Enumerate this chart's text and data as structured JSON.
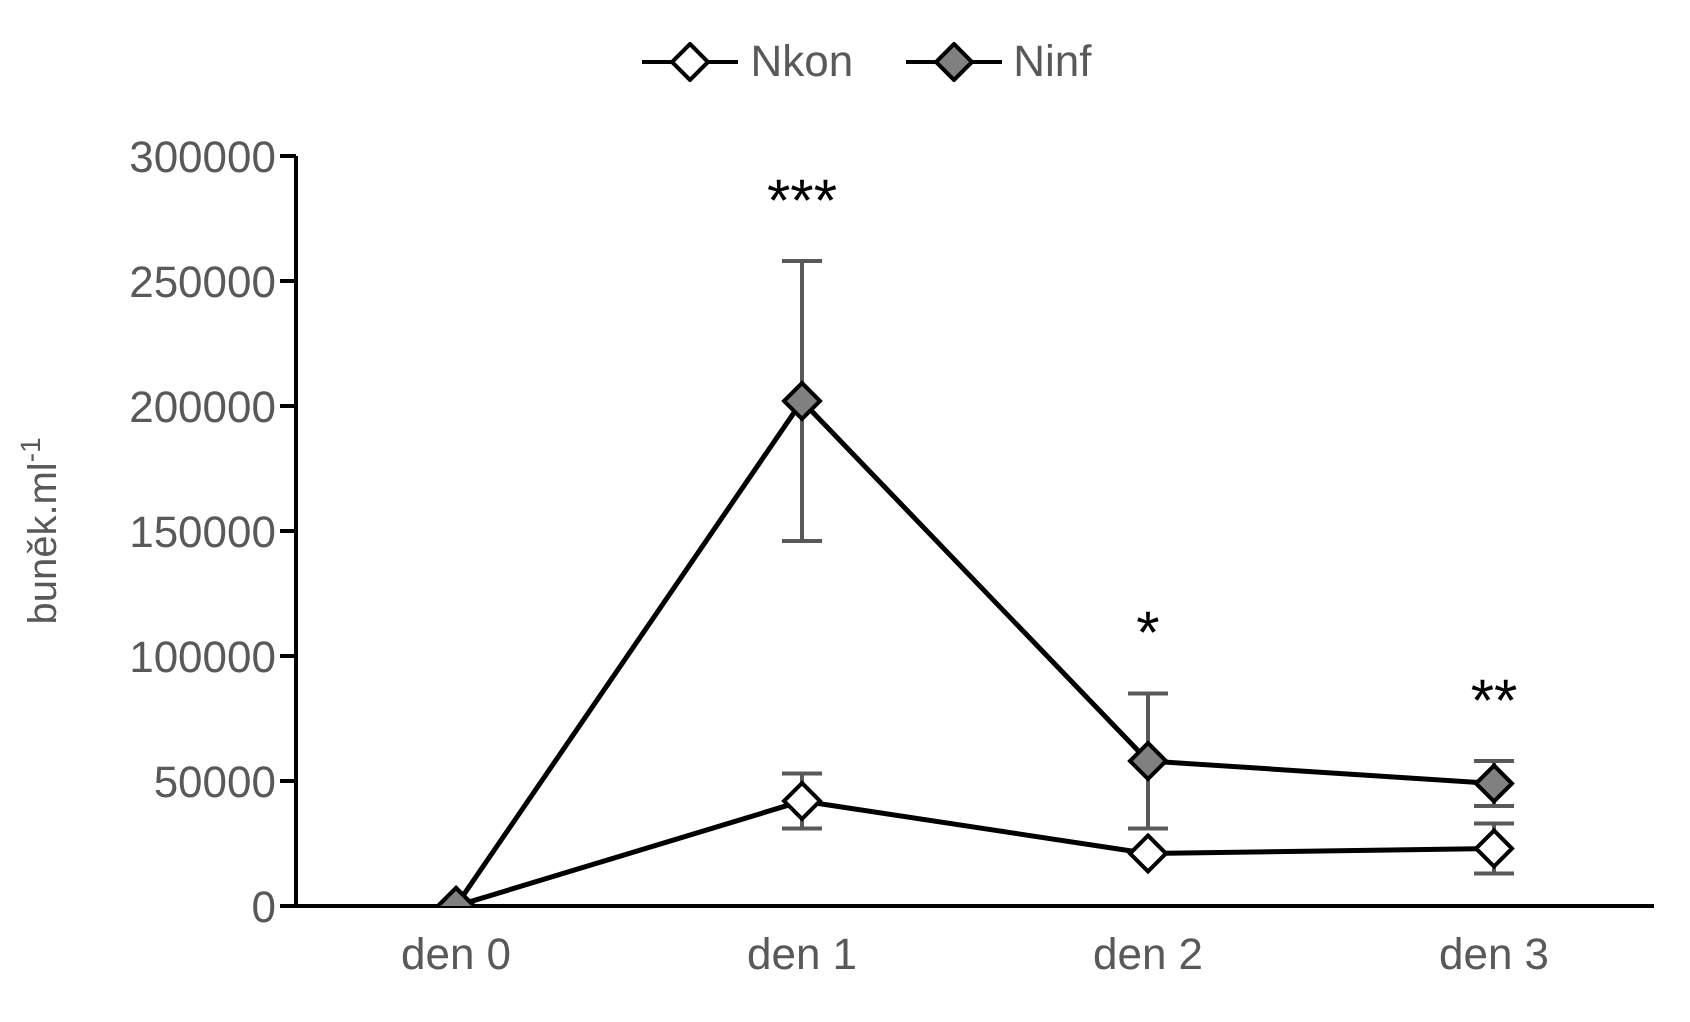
{
  "chart_data": {
    "type": "line",
    "ylabel": "buněk.ml$^{-1}$",
    "categories": [
      "den 0",
      "den 1",
      "den 2",
      "den 3"
    ],
    "series": [
      {
        "name": "Nkon",
        "color": "#ffffff",
        "values": [
          0,
          42000,
          21000,
          23000
        ],
        "errors": [
          null,
          11000,
          null,
          10000
        ]
      },
      {
        "name": "Ninf",
        "color": "#808080",
        "values": [
          0,
          202000,
          58000,
          49000
        ],
        "errors": [
          null,
          56000,
          27000,
          9000
        ]
      }
    ],
    "ylim": [
      0,
      300000
    ],
    "yticks": [
      0,
      50000,
      100000,
      150000,
      200000,
      250000,
      300000
    ],
    "grid": false,
    "legend": "top",
    "marker": "diamond",
    "line_style": "solid",
    "annotations": [
      "***",
      "*",
      "**"
    ]
  }
}
